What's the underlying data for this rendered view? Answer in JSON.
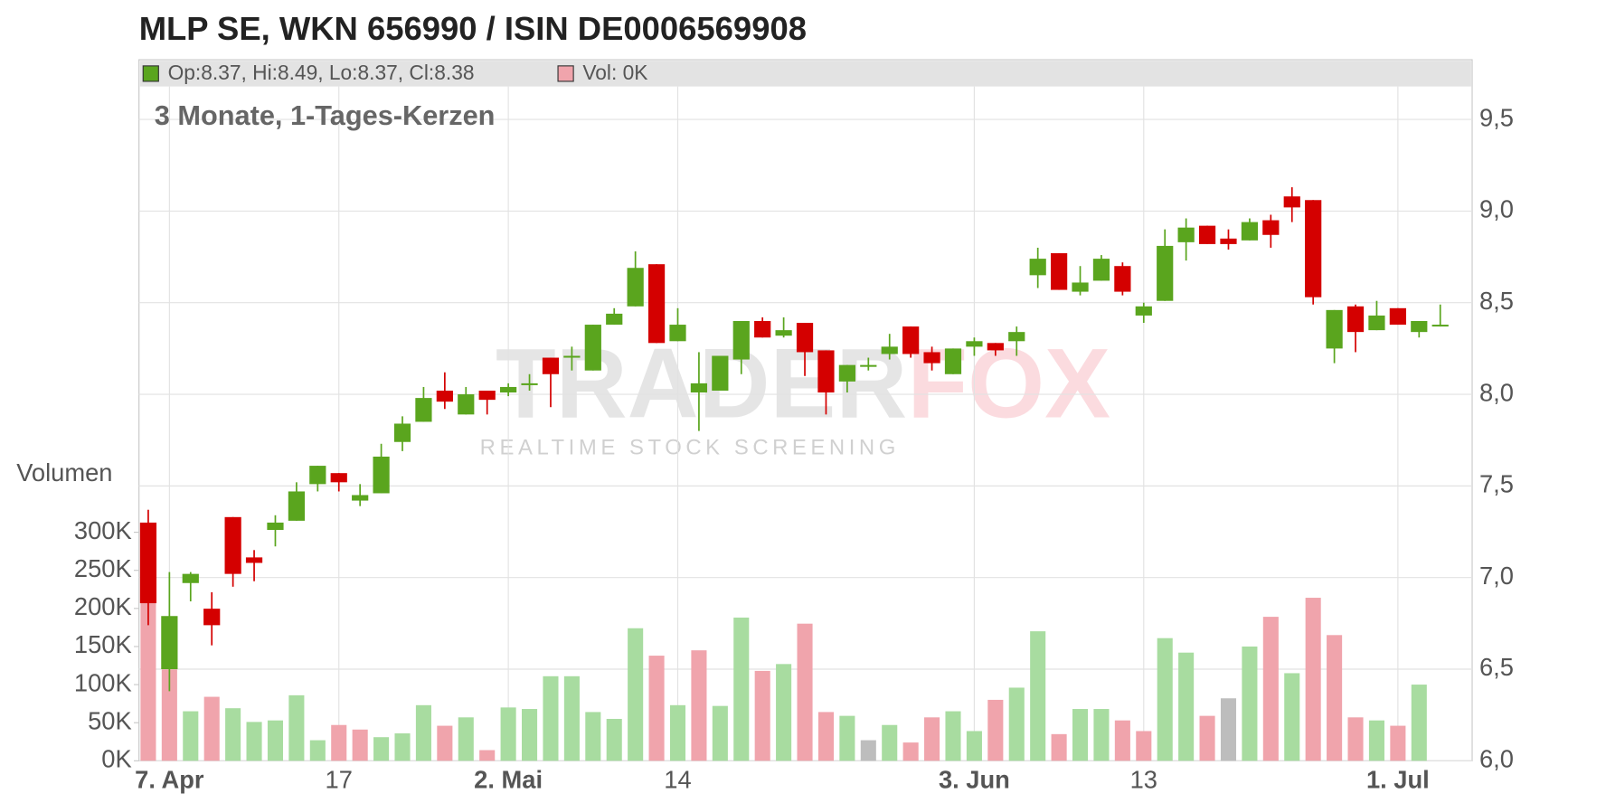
{
  "chart_data": {
    "type": "candlestick",
    "title": "MLP SE, WKN 656990 / ISIN DE0006569908",
    "subtitle": "3 Monate, 1-Tages-Kerzen",
    "legend": {
      "ohlc": "Op:8.37, Hi:8.49, Lo:8.37, Cl:8.38",
      "volume": "Vol: 0K"
    },
    "watermark": {
      "logo": [
        "TRADER",
        "FOX"
      ],
      "tagline": "REALTIME STOCK SCREENING"
    },
    "categories": [
      null,
      "7. Apr",
      null,
      null,
      null,
      null,
      null,
      null,
      null,
      "17",
      null,
      null,
      null,
      null,
      null,
      null,
      null,
      "2. Mai",
      null,
      null,
      null,
      null,
      null,
      null,
      null,
      "14",
      null,
      null,
      null,
      null,
      null,
      null,
      null,
      null,
      null,
      null,
      null,
      null,
      null,
      "3. Jun",
      null,
      null,
      null,
      null,
      null,
      null,
      null,
      "13",
      null,
      null,
      null,
      null,
      null,
      null,
      null,
      null,
      null,
      null,
      null,
      "1. Jul",
      null,
      null
    ],
    "open": [
      7.3,
      6.5,
      6.97,
      6.83,
      7.33,
      7.11,
      7.26,
      7.31,
      7.51,
      7.57,
      7.42,
      7.46,
      7.74,
      7.85,
      8.02,
      7.89,
      8.02,
      8.01,
      8.05,
      8.2,
      8.2,
      8.13,
      8.38,
      8.48,
      8.71,
      8.29,
      8.01,
      8.02,
      8.19,
      8.4,
      8.32,
      8.39,
      8.24,
      8.07,
      8.15,
      8.22,
      8.37,
      8.23,
      8.11,
      8.26,
      8.28,
      8.29,
      8.65,
      8.77,
      8.56,
      8.62,
      8.7,
      8.43,
      8.51,
      8.83,
      8.92,
      8.85,
      8.84,
      8.95,
      9.08,
      9.06,
      8.25,
      8.48,
      8.35,
      8.47,
      8.34,
      8.37
    ],
    "high": [
      7.37,
      7.03,
      7.03,
      6.92,
      7.33,
      7.15,
      7.34,
      7.52,
      7.61,
      7.57,
      7.51,
      7.73,
      7.88,
      8.04,
      8.12,
      8.04,
      8.02,
      8.06,
      8.11,
      8.2,
      8.26,
      8.38,
      8.47,
      8.78,
      8.71,
      8.47,
      8.23,
      8.21,
      8.4,
      8.42,
      8.42,
      8.39,
      8.24,
      8.16,
      8.2,
      8.33,
      8.37,
      8.26,
      8.25,
      8.31,
      8.28,
      8.37,
      8.8,
      8.77,
      8.7,
      8.76,
      8.72,
      8.5,
      8.9,
      8.96,
      8.92,
      8.9,
      8.96,
      8.98,
      9.13,
      9.06,
      8.46,
      8.49,
      8.51,
      8.47,
      8.4,
      8.49
    ],
    "low": [
      6.74,
      6.38,
      6.87,
      6.63,
      6.95,
      6.98,
      7.17,
      7.31,
      7.47,
      7.47,
      7.39,
      7.46,
      7.69,
      7.85,
      7.92,
      7.89,
      7.89,
      7.99,
      8.02,
      7.93,
      8.13,
      8.13,
      8.38,
      8.48,
      8.28,
      8.29,
      7.8,
      8.02,
      8.11,
      8.31,
      8.31,
      8.1,
      7.89,
      8.01,
      8.13,
      8.19,
      8.2,
      8.13,
      8.11,
      8.21,
      8.21,
      8.21,
      8.58,
      8.57,
      8.54,
      8.62,
      8.54,
      8.39,
      8.51,
      8.73,
      8.82,
      8.79,
      8.84,
      8.8,
      8.94,
      8.49,
      8.17,
      8.23,
      8.35,
      8.38,
      8.31,
      8.37
    ],
    "close": [
      6.86,
      6.79,
      7.02,
      6.74,
      7.02,
      7.08,
      7.3,
      7.47,
      7.61,
      7.52,
      7.45,
      7.66,
      7.84,
      7.98,
      7.96,
      8.0,
      7.97,
      8.04,
      8.06,
      8.11,
      8.21,
      8.38,
      8.44,
      8.69,
      8.28,
      8.38,
      8.06,
      8.21,
      8.4,
      8.31,
      8.35,
      8.23,
      8.01,
      8.16,
      8.16,
      8.26,
      8.22,
      8.17,
      8.25,
      8.29,
      8.24,
      8.34,
      8.74,
      8.57,
      8.61,
      8.74,
      8.56,
      8.48,
      8.81,
      8.91,
      8.82,
      8.82,
      8.94,
      8.87,
      9.02,
      8.53,
      8.46,
      8.34,
      8.43,
      8.38,
      8.4,
      8.38
    ],
    "up_color": "#5aa51e",
    "down_color": "#d40000",
    "ylim": [
      6.0,
      9.68
    ],
    "yticks": [
      {
        "value": 6.0,
        "label": "6,0"
      },
      {
        "value": 6.5,
        "label": "6,5"
      },
      {
        "value": 7.0,
        "label": "7,0"
      },
      {
        "value": 7.5,
        "label": "7,5"
      },
      {
        "value": 8.0,
        "label": "8,0"
      },
      {
        "value": 8.5,
        "label": "8,5"
      },
      {
        "value": 9.0,
        "label": "9,0"
      },
      {
        "value": 9.5,
        "label": "9,5"
      }
    ],
    "grid": true,
    "volume": {
      "label": "Volumen",
      "values": [
        210000,
        120000,
        65000,
        84000,
        69000,
        51000,
        53000,
        86000,
        27000,
        47000,
        41000,
        31000,
        36000,
        73000,
        46000,
        57000,
        14000,
        70000,
        68000,
        111000,
        111000,
        64000,
        55000,
        174000,
        138000,
        73000,
        145000,
        72000,
        188000,
        118000,
        127000,
        180000,
        64000,
        59000,
        27000,
        47000,
        24000,
        57000,
        65000,
        39000,
        80000,
        96000,
        170000,
        35000,
        68000,
        68000,
        53000,
        39000,
        161000,
        142000,
        59000,
        82000,
        150000,
        189000,
        115000,
        214000,
        165000,
        57000,
        53000,
        46000,
        100000,
        0
      ],
      "directions": [
        "down",
        "down",
        "up",
        "down",
        "up",
        "up",
        "up",
        "up",
        "up",
        "down",
        "down",
        "up",
        "up",
        "up",
        "down",
        "up",
        "down",
        "up",
        "up",
        "up",
        "up",
        "up",
        "up",
        "up",
        "down",
        "up",
        "down",
        "up",
        "up",
        "down",
        "up",
        "down",
        "down",
        "up",
        "flat",
        "up",
        "down",
        "down",
        "up",
        "up",
        "down",
        "up",
        "up",
        "down",
        "up",
        "up",
        "down",
        "down",
        "up",
        "up",
        "down",
        "flat",
        "up",
        "down",
        "up",
        "down",
        "down",
        "down",
        "up",
        "down",
        "up",
        "flat"
      ],
      "colors": {
        "up": "#a8dca0",
        "down": "#f0a4ac",
        "flat": "#bdbdbd"
      },
      "ylim": [
        0,
        300000
      ],
      "yticks": [
        {
          "value": 0,
          "label": "0K"
        },
        {
          "value": 50000,
          "label": "50K"
        },
        {
          "value": 100000,
          "label": "100K"
        },
        {
          "value": 150000,
          "label": "150K"
        },
        {
          "value": 200000,
          "label": "200K"
        },
        {
          "value": 250000,
          "label": "250K"
        },
        {
          "value": 300000,
          "label": "300K"
        }
      ]
    }
  }
}
